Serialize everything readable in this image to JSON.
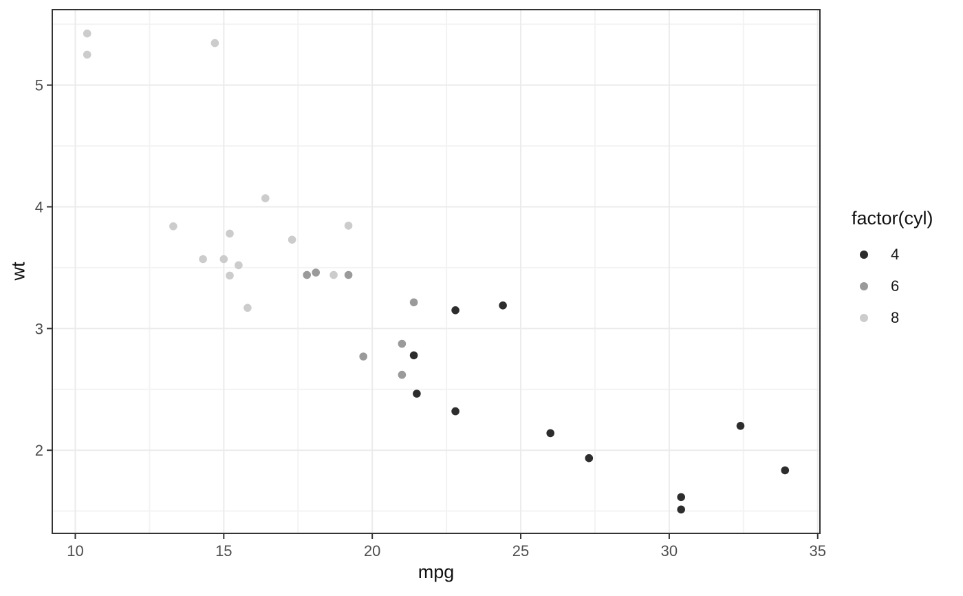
{
  "chart_data": {
    "type": "scatter",
    "title": "",
    "xlabel": "mpg",
    "ylabel": "wt",
    "xlim": [
      9.225,
      35.075
    ],
    "ylim": [
      1.317,
      5.62
    ],
    "x_ticks": [
      "10",
      "15",
      "20",
      "25",
      "30",
      "35"
    ],
    "x_tick_values": [
      10,
      15,
      20,
      25,
      30,
      35
    ],
    "x_minor_values": [
      12.5,
      17.5,
      22.5,
      27.5,
      32.5
    ],
    "y_ticks": [
      "2",
      "3",
      "4",
      "5"
    ],
    "y_tick_values": [
      2,
      3,
      4,
      5
    ],
    "y_minor_values": [
      1.5,
      2.5,
      3.5,
      4.5,
      5.5
    ],
    "grid": true,
    "legend": {
      "title": "factor(cyl)",
      "position": "right",
      "entries": [
        {
          "label": "4",
          "color": "#2d2d2d"
        },
        {
          "label": "6",
          "color": "#9a9a9a"
        },
        {
          "label": "8",
          "color": "#cccccc"
        }
      ]
    },
    "series": [
      {
        "name": "4",
        "color": "#2d2d2d",
        "points": [
          [
            22.8,
            2.32
          ],
          [
            24.4,
            3.19
          ],
          [
            22.8,
            3.15
          ],
          [
            32.4,
            2.2
          ],
          [
            30.4,
            1.615
          ],
          [
            33.9,
            1.835
          ],
          [
            21.5,
            2.465
          ],
          [
            27.3,
            1.935
          ],
          [
            26.0,
            2.14
          ],
          [
            30.4,
            1.513
          ],
          [
            21.4,
            2.78
          ]
        ]
      },
      {
        "name": "6",
        "color": "#9a9a9a",
        "points": [
          [
            21.0,
            2.62
          ],
          [
            21.0,
            2.875
          ],
          [
            21.4,
            3.215
          ],
          [
            18.1,
            3.46
          ],
          [
            19.2,
            3.44
          ],
          [
            17.8,
            3.44
          ],
          [
            19.7,
            2.77
          ]
        ]
      },
      {
        "name": "8",
        "color": "#cccccc",
        "points": [
          [
            18.7,
            3.44
          ],
          [
            14.3,
            3.57
          ],
          [
            16.4,
            4.07
          ],
          [
            17.3,
            3.73
          ],
          [
            15.2,
            3.78
          ],
          [
            10.4,
            5.25
          ],
          [
            10.4,
            5.424
          ],
          [
            14.7,
            5.345
          ],
          [
            15.5,
            3.52
          ],
          [
            15.2,
            3.435
          ],
          [
            13.3,
            3.84
          ],
          [
            19.2,
            3.845
          ],
          [
            15.8,
            3.17
          ],
          [
            15.0,
            3.57
          ]
        ]
      }
    ],
    "style": {
      "grid_major_color": "#ebebeb",
      "grid_minor_color": "#f3f3f3",
      "panel_border_color": "#333333",
      "tick_color": "#333333",
      "tick_label_color": "#4d4d4d",
      "axis_title_color": "#111111",
      "background": "#ffffff"
    }
  }
}
